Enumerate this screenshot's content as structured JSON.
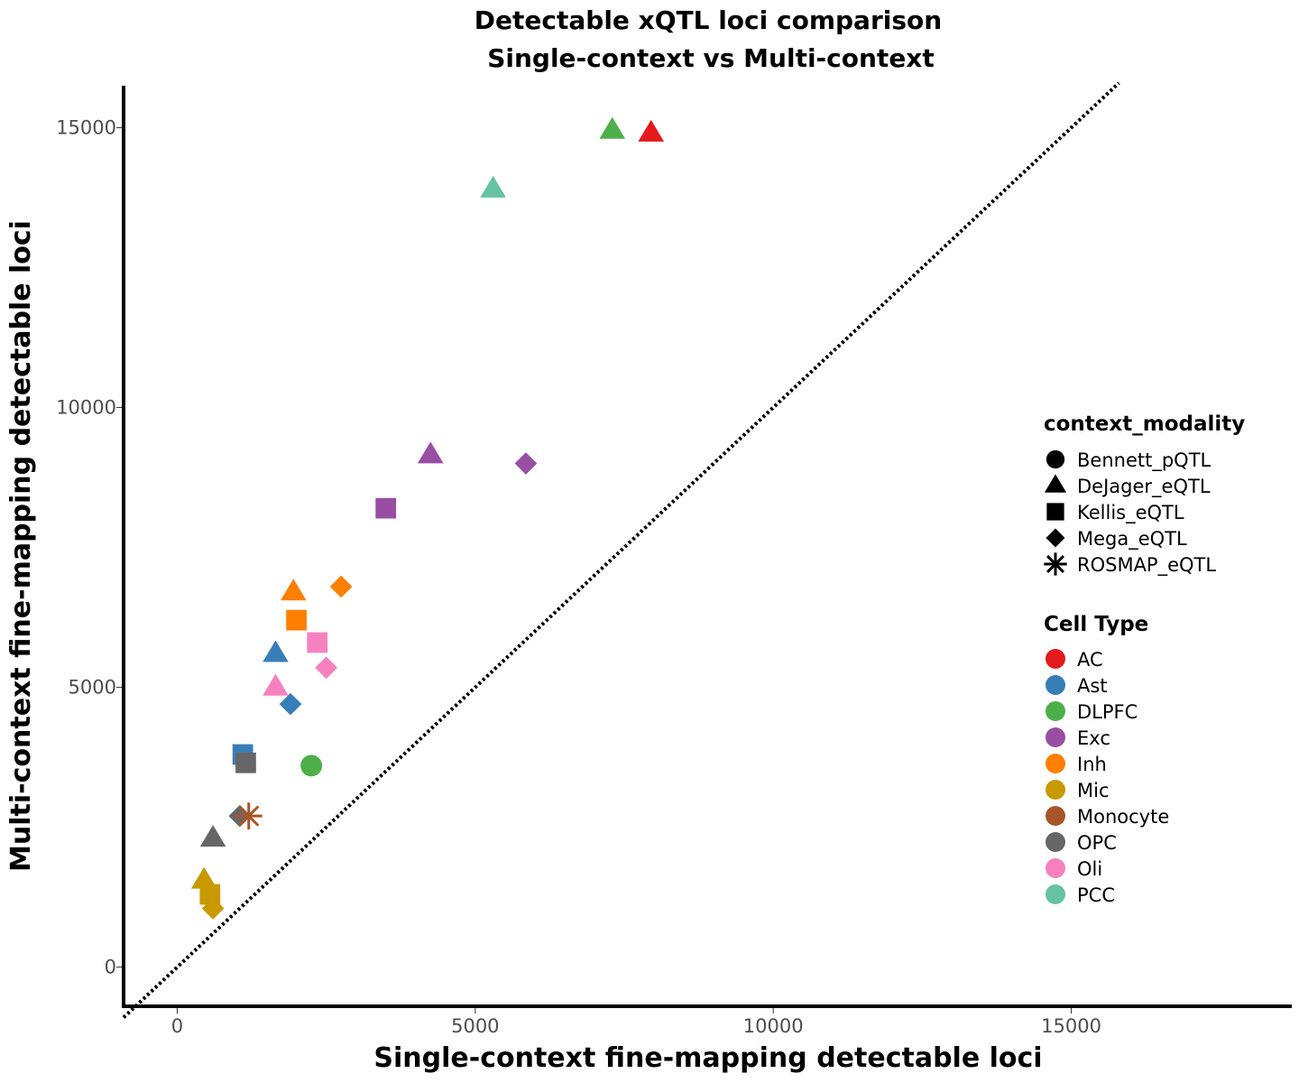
{
  "chart_data": {
    "type": "scatter",
    "title": [
      "Detectable xQTL loci comparison",
      "Single-context vs Multi-context"
    ],
    "xlabel": "Single-context fine-mapping detectable loci",
    "ylabel": "Multi-context fine-mapping detectable loci",
    "xlim": [
      -900,
      18700
    ],
    "ylim": [
      -700,
      15750
    ],
    "x_ticks": [
      0,
      5000,
      10000,
      15000
    ],
    "y_ticks": [
      0,
      5000,
      10000,
      15000
    ],
    "x_tick_labels": [
      "0",
      "5000",
      "10000",
      "15000"
    ],
    "y_tick_labels": [
      "0",
      "5000",
      "10000",
      "15000"
    ],
    "grid": false,
    "reference_line": {
      "type": "identity",
      "style": "dotted",
      "from": [
        -900,
        -900
      ],
      "to": [
        15800,
        15800
      ]
    },
    "legend_position": "right",
    "shape_legend": {
      "title": "context_modality",
      "entries": [
        {
          "name": "Bennett_pQTL",
          "shape": "circle"
        },
        {
          "name": "DeJager_eQTL",
          "shape": "triangle"
        },
        {
          "name": "Kellis_eQTL",
          "shape": "square"
        },
        {
          "name": "Mega_eQTL",
          "shape": "diamond"
        },
        {
          "name": "ROSMAP_eQTL",
          "shape": "asterisk"
        }
      ]
    },
    "color_legend": {
      "title": "Cell Type",
      "entries": [
        {
          "name": "AC",
          "color": "#e41a1c"
        },
        {
          "name": "Ast",
          "color": "#377eb8"
        },
        {
          "name": "DLPFC",
          "color": "#4daf4a"
        },
        {
          "name": "Exc",
          "color": "#984ea3"
        },
        {
          "name": "Inh",
          "color": "#ff7f00"
        },
        {
          "name": "Mic",
          "color": "#c89900"
        },
        {
          "name": "Monocyte",
          "color": "#a65628"
        },
        {
          "name": "OPC",
          "color": "#666666"
        },
        {
          "name": "Oli",
          "color": "#f781bf"
        },
        {
          "name": "PCC",
          "color": "#66c2a5"
        }
      ]
    },
    "points": [
      {
        "cell": "DLPFC",
        "modality": "DeJager_eQTL",
        "x": 7300,
        "y": 14950
      },
      {
        "cell": "AC",
        "modality": "DeJager_eQTL",
        "x": 7950,
        "y": 14900
      },
      {
        "cell": "PCC",
        "modality": "DeJager_eQTL",
        "x": 5300,
        "y": 13900
      },
      {
        "cell": "Exc",
        "modality": "DeJager_eQTL",
        "x": 4250,
        "y": 9150
      },
      {
        "cell": "Exc",
        "modality": "Mega_eQTL",
        "x": 5850,
        "y": 9000
      },
      {
        "cell": "Exc",
        "modality": "Kellis_eQTL",
        "x": 3500,
        "y": 8200
      },
      {
        "cell": "Inh",
        "modality": "Mega_eQTL",
        "x": 2750,
        "y": 6800
      },
      {
        "cell": "Inh",
        "modality": "DeJager_eQTL",
        "x": 1950,
        "y": 6700
      },
      {
        "cell": "Inh",
        "modality": "Kellis_eQTL",
        "x": 2000,
        "y": 6200
      },
      {
        "cell": "Oli",
        "modality": "Kellis_eQTL",
        "x": 2350,
        "y": 5800
      },
      {
        "cell": "Ast",
        "modality": "DeJager_eQTL",
        "x": 1650,
        "y": 5600
      },
      {
        "cell": "Oli",
        "modality": "Mega_eQTL",
        "x": 2500,
        "y": 5350
      },
      {
        "cell": "Oli",
        "modality": "DeJager_eQTL",
        "x": 1650,
        "y": 5000
      },
      {
        "cell": "Ast",
        "modality": "Mega_eQTL",
        "x": 1900,
        "y": 4700
      },
      {
        "cell": "Ast",
        "modality": "Kellis_eQTL",
        "x": 1100,
        "y": 3800
      },
      {
        "cell": "OPC",
        "modality": "Kellis_eQTL",
        "x": 1150,
        "y": 3650
      },
      {
        "cell": "DLPFC",
        "modality": "Bennett_pQTL",
        "x": 2250,
        "y": 3600
      },
      {
        "cell": "OPC",
        "modality": "Mega_eQTL",
        "x": 1050,
        "y": 2700
      },
      {
        "cell": "Monocyte",
        "modality": "ROSMAP_eQTL",
        "x": 1200,
        "y": 2700
      },
      {
        "cell": "OPC",
        "modality": "DeJager_eQTL",
        "x": 600,
        "y": 2300
      },
      {
        "cell": "Mic",
        "modality": "DeJager_eQTL",
        "x": 450,
        "y": 1550
      },
      {
        "cell": "Mic",
        "modality": "Kellis_eQTL",
        "x": 550,
        "y": 1300
      },
      {
        "cell": "Mic",
        "modality": "Mega_eQTL",
        "x": 600,
        "y": 1050
      }
    ]
  }
}
